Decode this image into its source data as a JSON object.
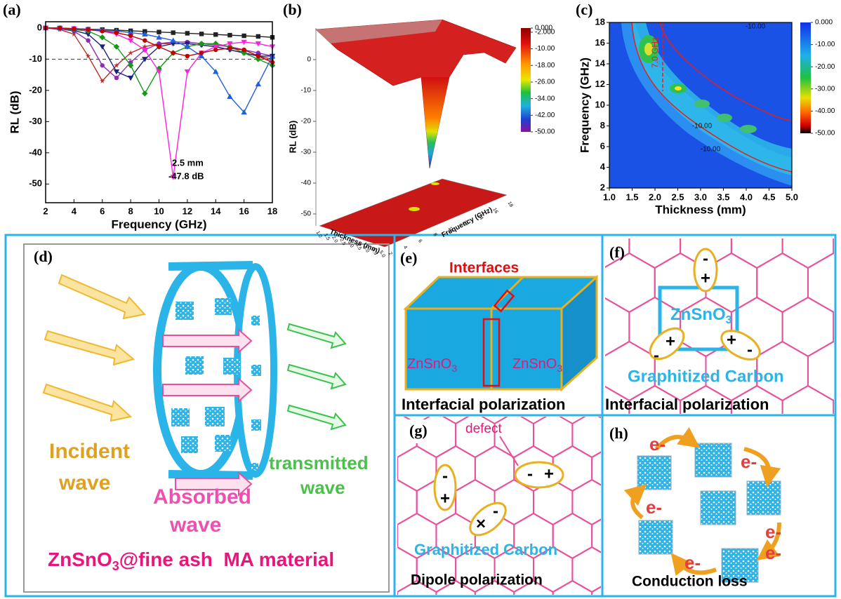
{
  "chart_data": [
    {
      "type": "line",
      "panel": "(a)",
      "xlabel": "Frequency (GHz)",
      "ylabel": "RL (dB)",
      "x": [
        2,
        3,
        4,
        5,
        6,
        7,
        8,
        9,
        10,
        11,
        12,
        13,
        14,
        15,
        16,
        17,
        18
      ],
      "xlim": [
        2,
        18
      ],
      "xticks": [
        2,
        4,
        6,
        8,
        10,
        12,
        14,
        16,
        18
      ],
      "ylim": [
        -56,
        2
      ],
      "yticks": [
        0,
        -10,
        -20,
        -30,
        -40,
        -50
      ],
      "reference_line": -10,
      "annotation": [
        "2.5 mm",
        "-47.8 dB"
      ],
      "series": [
        {
          "color": "#222222",
          "marker": "square",
          "values": [
            0,
            0,
            -0.2,
            -0.4,
            -0.5,
            -0.7,
            -0.9,
            -1.1,
            -1.3,
            -1.5,
            -1.7,
            -1.9,
            -2.1,
            -2.3,
            -2.5,
            -2.7,
            -3
          ]
        },
        {
          "color": "#b5302a",
          "marker": "star",
          "values": [
            0,
            -0.5,
            -2,
            -9,
            -17,
            -12,
            -8,
            -6,
            -5,
            -5,
            -5,
            -5.5,
            -6,
            -7,
            -8,
            -9,
            -10
          ]
        },
        {
          "color": "#8e2bb5",
          "marker": "circle",
          "values": [
            0,
            -0.3,
            -1,
            -4,
            -12,
            -16,
            -11,
            -7,
            -5,
            -4.5,
            -4.5,
            -5,
            -5.5,
            -6,
            -7,
            -8,
            -9
          ]
        },
        {
          "color": "#1a237e",
          "marker": "triangle-down",
          "values": [
            0,
            -0.2,
            -0.8,
            -2,
            -6,
            -14,
            -16,
            -10,
            -6,
            -5,
            -5,
            -5.5,
            -6,
            -7,
            -8,
            -9,
            -9
          ]
        },
        {
          "color": "#169a16",
          "marker": "diamond",
          "values": [
            0,
            -0.2,
            -0.5,
            -1,
            -3,
            -6,
            -12,
            -21,
            -13,
            -8,
            -6,
            -5,
            -5,
            -6,
            -8,
            -10,
            -12
          ]
        },
        {
          "color": "#ff22dd",
          "marker": "triangle-down",
          "values": [
            0,
            -0.1,
            -0.3,
            -0.6,
            -1,
            -2,
            -4,
            -7,
            -14,
            -47.8,
            -14,
            -8,
            -6,
            -5,
            -4.5,
            -5,
            -6
          ]
        },
        {
          "color": "#1f5fe0",
          "marker": "triangle-up",
          "values": [
            0,
            0,
            -0.2,
            -0.4,
            -0.7,
            -1,
            -1.5,
            -2,
            -3,
            -4,
            -6,
            -9,
            -14,
            -22,
            -27,
            -18,
            -9
          ]
        },
        {
          "color": "#c00000",
          "marker": "circle",
          "values": [
            0,
            0,
            -0.3,
            -0.5,
            -1,
            -1.5,
            -2.5,
            -4,
            -6,
            -8,
            -9,
            -8,
            -7,
            -6.5,
            -7,
            -9,
            -11
          ]
        }
      ]
    },
    {
      "type": "surface",
      "panel": "(b)",
      "zlabel": "RL (dB)",
      "xlabel": "Thickness (mm)",
      "ylabel": "Frequency (GHz)",
      "zlim": [
        -50,
        0
      ],
      "zticks": [
        0,
        -10,
        -20,
        -30,
        -40,
        -50
      ],
      "xticks": [
        {
          "value": 1,
          "label": "1.0"
        },
        {
          "value": 1.5,
          "label": "1.5"
        },
        {
          "value": 2,
          "label": "2.0"
        },
        {
          "value": 2.5,
          "label": "2.5"
        },
        {
          "value": 3,
          "label": "3.0"
        },
        {
          "value": 3.5,
          "label": "3.5"
        },
        {
          "value": 4,
          "label": "4.0"
        },
        {
          "value": 4.5,
          "label": "4.5"
        },
        {
          "value": 5,
          "label": "5.0"
        }
      ],
      "yticks": [
        2,
        4,
        6,
        8,
        10,
        12,
        14,
        16,
        18
      ],
      "colorbar_ticks": [
        {
          "value": 0,
          "label": "0.000"
        },
        {
          "value": -2,
          "label": "-2.000"
        },
        {
          "value": -10,
          "label": "-10.00"
        },
        {
          "value": -18,
          "label": "-18.00"
        },
        {
          "value": -26,
          "label": "-26.00"
        },
        {
          "value": -34,
          "label": "-34.00"
        },
        {
          "value": -42,
          "label": "-42.00"
        },
        {
          "value": -50,
          "label": "-50.00"
        }
      ]
    },
    {
      "type": "contour",
      "panel": "(c)",
      "xlabel": "Thickness (mm)",
      "ylabel": "Frequency (GHz)",
      "xlim": [
        1,
        5
      ],
      "xticks": [
        {
          "value": 1,
          "label": "1.0"
        },
        {
          "value": 1.5,
          "label": "1.5"
        },
        {
          "value": 2,
          "label": "2.0"
        },
        {
          "value": 2.5,
          "label": "2.5"
        },
        {
          "value": 3,
          "label": "3.0"
        },
        {
          "value": 3.5,
          "label": "3.5"
        },
        {
          "value": 4,
          "label": "4.0"
        },
        {
          "value": 4.5,
          "label": "4.5"
        },
        {
          "value": 5,
          "label": "5.0"
        }
      ],
      "ylim": [
        2,
        18
      ],
      "yticks": [
        2,
        4,
        6,
        8,
        10,
        12,
        14,
        16,
        18
      ],
      "annotations": [
        "-10.00",
        "-10.00",
        "-10.00",
        "7.0 GHz"
      ],
      "colorbar_ticks": [
        {
          "value": 0,
          "label": "0.000"
        },
        {
          "value": -10,
          "label": "-10.00"
        },
        {
          "value": -20,
          "label": "-20.00"
        },
        {
          "value": -30,
          "label": "-30.00"
        },
        {
          "value": -40,
          "label": "-40.00"
        },
        {
          "value": -50,
          "label": "-50.00"
        }
      ]
    }
  ],
  "panels": {
    "d": {
      "label": "(d)",
      "incident": [
        "Incident",
        "wave"
      ],
      "absorbed": [
        "Absorbed",
        "wave"
      ],
      "transmitted": [
        "transmitted",
        "wave"
      ],
      "material": [
        "ZnSnO",
        "3",
        "@fine ash  MA material"
      ]
    },
    "e": {
      "label": "(e)",
      "interfaces": "Interfaces",
      "left": [
        "ZnSnO",
        "3"
      ],
      "right": [
        "ZnSnO",
        "3"
      ],
      "caption": "Interfacial polarization"
    },
    "f": {
      "label": "(f)",
      "material": [
        "ZnSnO",
        "3"
      ],
      "carbon": "Graphitized Carbon",
      "charges": [
        "-",
        "+",
        "+",
        "-",
        "+",
        "-"
      ],
      "caption": "Interfacial polarization"
    },
    "g": {
      "label": "(g)",
      "defect": "defect",
      "charges": [
        "-",
        "+",
        "-",
        "+",
        "×",
        "-"
      ],
      "carbon": "Graphitized Carbon",
      "caption": "Dipole polarization"
    },
    "h": {
      "label": "(h)",
      "electrons": [
        "e-",
        "e-",
        "e-",
        "e-",
        "e-",
        "e-"
      ],
      "caption": "Conduction loss"
    }
  }
}
